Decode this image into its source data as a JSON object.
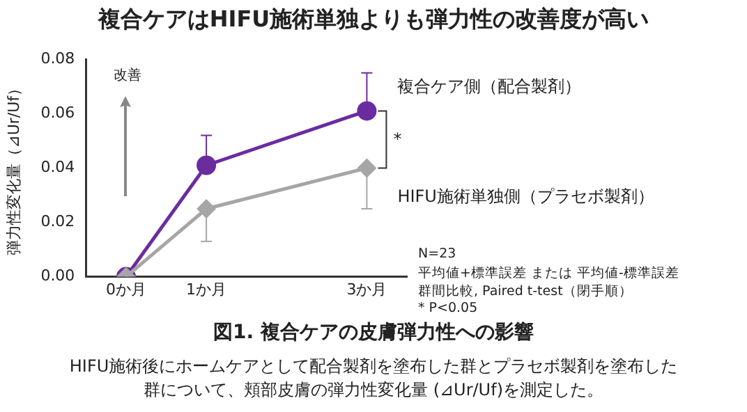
{
  "chart_data": {
    "type": "line",
    "title": "複合ケアはHIFU施術単独よりも弾力性の改善度が高い",
    "ylabel": "弾力性変化量（⊿Ur/Uf）",
    "x": [
      0,
      1,
      3
    ],
    "xlim": [
      -0.5,
      3.5
    ],
    "xticks": [
      {
        "value": 0,
        "label": "0か月"
      },
      {
        "value": 1,
        "label": "1か月"
      },
      {
        "value": 3,
        "label": "3か月"
      }
    ],
    "ylim": [
      0,
      0.08
    ],
    "yticks": [
      {
        "value": 0,
        "label": "0.00"
      },
      {
        "value": 0.02,
        "label": "0.02"
      },
      {
        "value": 0.04,
        "label": "0.04"
      },
      {
        "value": 0.06,
        "label": "0.06"
      },
      {
        "value": 0.08,
        "label": "0.08"
      }
    ],
    "series": [
      {
        "name": "複合ケア側（配合製剤）",
        "color": "#6b2c9f",
        "marker": "circle",
        "values": [
          0,
          0.041,
          0.061
        ],
        "errors": [
          null,
          [
            0.041,
            0.052
          ],
          [
            0.061,
            0.075
          ]
        ]
      },
      {
        "name": "HIFU施術単独側（プラセボ製剤）",
        "color": "#a6a6a6",
        "marker": "diamond",
        "values": [
          0,
          0.025,
          0.04
        ],
        "errors": [
          null,
          [
            0.013,
            0.025
          ],
          [
            0.025,
            0.04
          ]
        ]
      }
    ],
    "annotations": [
      "改善",
      "*",
      "N=23",
      "平均値+標準誤差 または 平均値-標準誤差",
      "群間比較, Paired t-test（閉手順）",
      "* P<0.05",
      "図1. 複合ケアの皮膚弾力性への影響",
      "HIFU施術後にホームケアとして配合製剤を塗布した群とプラセボ製剤を塗布した群について、頬部皮膚の弾力性変化量 (⊿Ur/Uf)を測定した。"
    ],
    "grid": false,
    "legend": false,
    "line_style": "solid"
  }
}
